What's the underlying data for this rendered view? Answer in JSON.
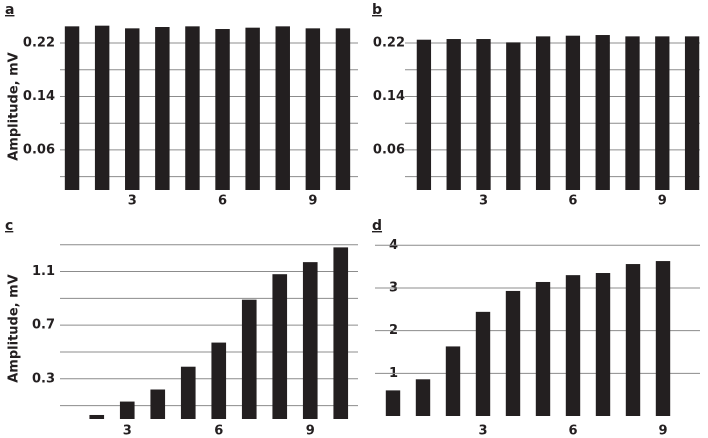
{
  "chart_data": [
    {
      "type": "bar",
      "panel_label": "a",
      "ylabel": "Amplitude, mV",
      "categories": [
        null,
        null,
        "3",
        null,
        null,
        "6",
        null,
        null,
        "9",
        null
      ],
      "values": [
        0.245,
        0.246,
        0.242,
        0.244,
        0.245,
        0.241,
        0.243,
        0.245,
        0.242,
        0.242
      ],
      "color": "#231f20",
      "ylim": [
        0,
        0.25
      ],
      "yticks": [
        0.06,
        0.14,
        0.22
      ],
      "grid": true,
      "grid_lines": [
        0.02,
        0.1,
        0.18
      ]
    },
    {
      "type": "bar",
      "panel_label": "b",
      "categories": [
        null,
        null,
        "3",
        null,
        null,
        "6",
        null,
        null,
        "9",
        null
      ],
      "values": [
        0.225,
        0.226,
        0.226,
        0.221,
        0.23,
        0.231,
        0.232,
        0.23,
        0.23,
        0.23
      ],
      "color": "#231f20",
      "ylim": [
        0,
        0.25
      ],
      "yticks": [
        0.06,
        0.14,
        0.22
      ],
      "grid": true,
      "grid_lines": [
        0.02,
        0.1,
        0.18
      ]
    },
    {
      "type": "bar",
      "panel_label": "c",
      "ylabel": "Amplitude, mV",
      "categories": [
        null,
        null,
        "3",
        null,
        null,
        "6",
        null,
        null,
        "9",
        null
      ],
      "values": [
        0,
        0.03,
        0.13,
        0.22,
        0.39,
        0.57,
        0.89,
        1.08,
        1.17,
        1.28
      ],
      "color": "#231f20",
      "ylim": [
        0,
        1.35
      ],
      "yticks": [
        0.3,
        0.7,
        1.1
      ],
      "grid": true,
      "grid_lines": [
        0.1,
        0.5,
        0.9,
        1.3
      ]
    },
    {
      "type": "bar",
      "panel_label": "d",
      "categories": [
        null,
        null,
        null,
        "3",
        null,
        null,
        "6",
        null,
        null,
        "9"
      ],
      "values": [
        0.6,
        0.86,
        1.63,
        2.44,
        2.93,
        3.14,
        3.3,
        3.35,
        3.56,
        3.63
      ],
      "color": "#231f20",
      "ylim": [
        0,
        4.1
      ],
      "yticks": [
        1,
        2,
        3,
        4
      ],
      "grid": true,
      "grid_lines": []
    }
  ]
}
